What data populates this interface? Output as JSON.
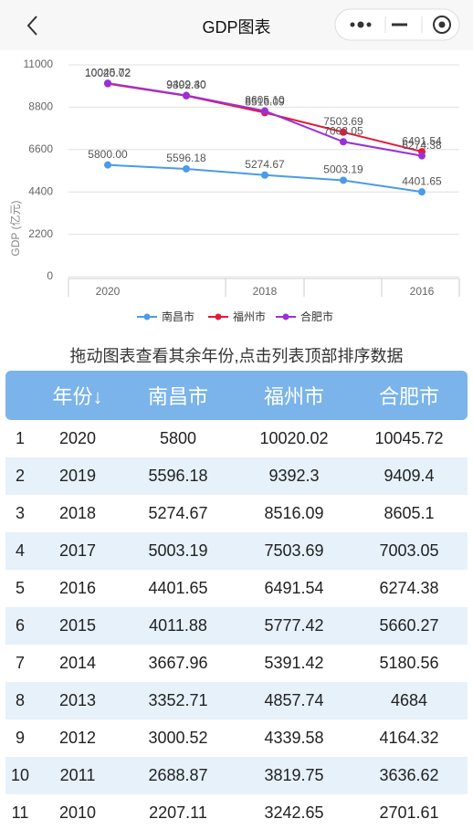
{
  "header": {
    "title": "GDP图表"
  },
  "chart_data": {
    "type": "line",
    "y_label": "GDP (亿元)",
    "categories": [
      "2020",
      null,
      "2018",
      null,
      "2016"
    ],
    "series": [
      {
        "name": "南昌市",
        "color": "#4a9be8",
        "values": [
          5800,
          5596.18,
          5274.67,
          5003.19,
          4401.65
        ],
        "value_labels": [
          "5800.00",
          "5596.18",
          "5274.67",
          "5003.19",
          "4401.65"
        ]
      },
      {
        "name": "福州市",
        "color": "#e8173c",
        "values": [
          10020.02,
          9392.3,
          8516.09,
          7503.69,
          6491.54
        ],
        "value_labels": [
          "10020.02",
          "9392.30",
          "8516.09",
          "7503.69",
          "6491.54"
        ]
      },
      {
        "name": "合肥市",
        "color": "#9b30d8",
        "values": [
          10045.72,
          9409.4,
          8605.1,
          7003.05,
          6274.38
        ],
        "value_labels": [
          "10045.72",
          "9409.40",
          "8605.10",
          "7003.05",
          "6274.38"
        ]
      }
    ],
    "ylim": [
      0,
      11000
    ],
    "yticks": [
      0,
      2200,
      4400,
      6600,
      8800,
      11000
    ],
    "grid": true,
    "legend": "bottom"
  },
  "hint": "拖动图表查看其余年份,点击列表顶部排序数据",
  "table": {
    "header": [
      "年份↓",
      "南昌市",
      "福州市",
      "合肥市"
    ],
    "rows": [
      [
        "1",
        "2020",
        "5800",
        "10020.02",
        "10045.72"
      ],
      [
        "2",
        "2019",
        "5596.18",
        "9392.3",
        "9409.4"
      ],
      [
        "3",
        "2018",
        "5274.67",
        "8516.09",
        "8605.1"
      ],
      [
        "4",
        "2017",
        "5003.19",
        "7503.69",
        "7003.05"
      ],
      [
        "5",
        "2016",
        "4401.65",
        "6491.54",
        "6274.38"
      ],
      [
        "6",
        "2015",
        "4011.88",
        "5777.42",
        "5660.27"
      ],
      [
        "7",
        "2014",
        "3667.96",
        "5391.42",
        "5180.56"
      ],
      [
        "8",
        "2013",
        "3352.71",
        "4857.74",
        "4684"
      ],
      [
        "9",
        "2012",
        "3000.52",
        "4339.58",
        "4164.32"
      ],
      [
        "10",
        "2011",
        "2688.87",
        "3819.75",
        "3636.62"
      ],
      [
        "11",
        "2010",
        "2207.11",
        "3242.65",
        "2701.61"
      ]
    ]
  }
}
